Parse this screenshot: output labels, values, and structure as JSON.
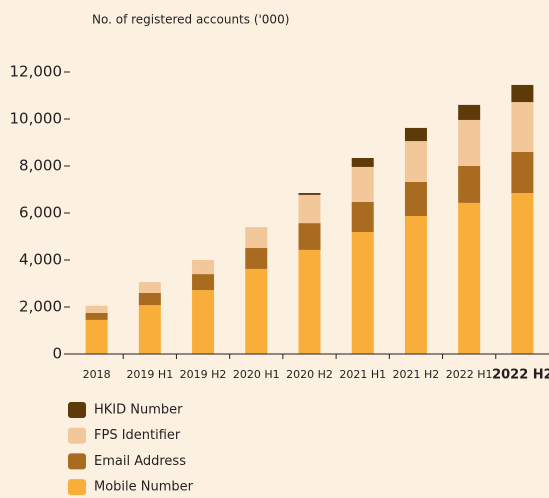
{
  "chart_data": {
    "type": "stacked_bar",
    "title": "No. of registered accounts ('000)",
    "categories": [
      "2018",
      "2019 H1",
      "2019 H2",
      "2020 H1",
      "2020 H2",
      "2021 H1",
      "2021 H2",
      "2022 H1",
      "2022 H2"
    ],
    "highlighted_category_index": 8,
    "series": [
      {
        "name": "Mobile Number",
        "color": "#f9ae3b",
        "values": [
          1450,
          2080,
          2720,
          3620,
          4430,
          5190,
          5870,
          6430,
          6850
        ]
      },
      {
        "name": "Email Address",
        "color": "#a86b1f",
        "values": [
          300,
          520,
          680,
          890,
          1140,
          1280,
          1450,
          1570,
          1750
        ]
      },
      {
        "name": "FPS Identifier",
        "color": "#f2c79a",
        "values": [
          300,
          460,
          600,
          890,
          1200,
          1490,
          1740,
          1960,
          2120
        ]
      },
      {
        "name": "HKID Number",
        "color": "#5e3a0b",
        "values": [
          0,
          0,
          0,
          0,
          80,
          380,
          560,
          640,
          730
        ]
      }
    ],
    "ylim": [
      0,
      12000
    ],
    "yticks": [
      0,
      {
        "value": 2000,
        "label": "2,000"
      },
      {
        "value": 4000,
        "label": "4,000"
      },
      {
        "value": 6000,
        "label": "6,000"
      },
      {
        "value": 8000,
        "label": "8,000"
      },
      {
        "value": 10000,
        "label": "10,000"
      },
      {
        "value": 12000,
        "label": "12,000"
      }
    ],
    "grid": false
  }
}
